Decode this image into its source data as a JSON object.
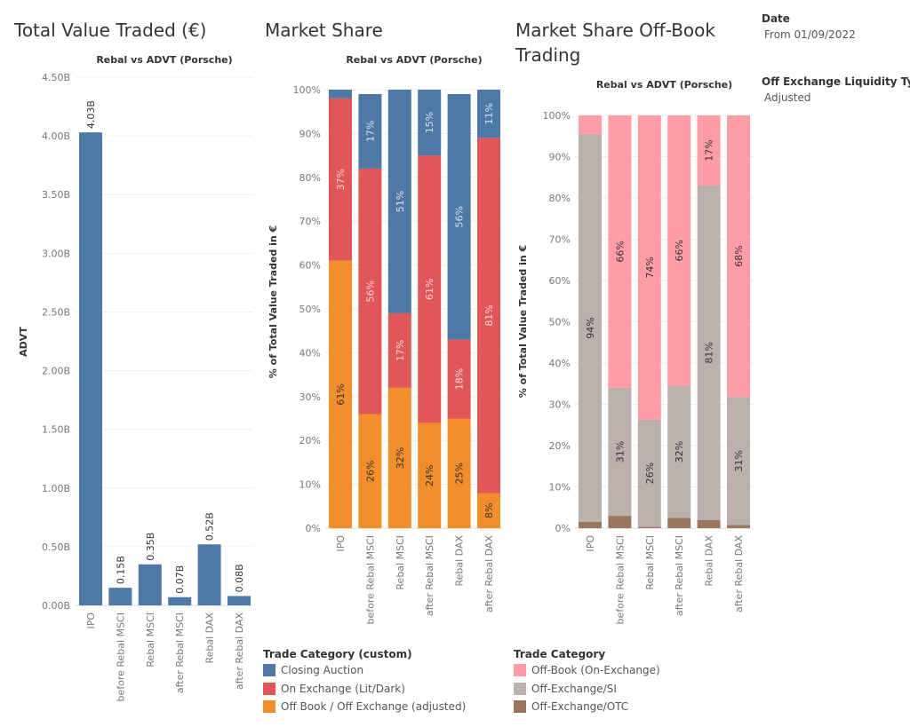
{
  "titles": {
    "total_value": "Total Value Traded (€)",
    "market_share": "Market Share",
    "off_book": "Market Share Off-Book Trading"
  },
  "filters": {
    "date_label": "Date",
    "date_value": "From 01/09/2022",
    "liquidity_label": "Off Exchange Liquidity Ty..",
    "liquidity_value": "Adjusted"
  },
  "legends": {
    "custom": {
      "title": "Trade Category (custom)",
      "items": [
        {
          "label": "Closing Auction",
          "color": "#4e79a7"
        },
        {
          "label": "On Exchange (Lit/Dark)",
          "color": "#e15759"
        },
        {
          "label": "Off Book / Off Exchange (adjusted)",
          "color": "#f28e2b"
        }
      ]
    },
    "category": {
      "title": "Trade Category",
      "items": [
        {
          "label": "Off-Book (On-Exchange)",
          "color": "#ff9da7"
        },
        {
          "label": "Off-Exchange/SI",
          "color": "#bab0ac"
        },
        {
          "label": "Off-Exchange/OTC",
          "color": "#9c755f"
        }
      ]
    }
  },
  "chart_data": [
    {
      "type": "bar",
      "title": "Rebal vs ADVT (Porsche)",
      "xlabel": "",
      "ylabel": "ADVT",
      "ylim": [
        0,
        4.5
      ],
      "yticks": [
        "0.00B",
        "0.50B",
        "1.00B",
        "1.50B",
        "2.00B",
        "2.50B",
        "3.00B",
        "3.50B",
        "4.00B",
        "4.50B"
      ],
      "categories": [
        "IPO",
        "before Rebal MSCI",
        "Rebal MSCI",
        "after Rebal MSCI",
        "Rebal DAX",
        "after Rebal DAX"
      ],
      "values": [
        4.03,
        0.15,
        0.35,
        0.07,
        0.52,
        0.08
      ],
      "labels": [
        "4.03B",
        "0.15B",
        "0.35B",
        "0.07B",
        "0.52B",
        "0.08B"
      ],
      "color": "#4e79a7",
      "grid": true
    },
    {
      "type": "bar",
      "stacked": true,
      "title": "Rebal vs ADVT (Porsche)",
      "xlabel": "",
      "ylabel": "% of Total Value Traded in €",
      "ylim": [
        0,
        100
      ],
      "yticks": [
        "0%",
        "10%",
        "20%",
        "30%",
        "40%",
        "50%",
        "60%",
        "70%",
        "80%",
        "90%",
        "100%"
      ],
      "categories": [
        "IPO",
        "before Rebal MSCI",
        "Rebal MSCI",
        "after Rebal MSCI",
        "Rebal DAX",
        "after Rebal DAX"
      ],
      "series": [
        {
          "name": "Off Book / Off Exchange (adjusted)",
          "color": "#f28e2b",
          "values": [
            61,
            26,
            32,
            24,
            25,
            8
          ],
          "labels": [
            "61%",
            "26%",
            "32%",
            "24%",
            "25%",
            "8%"
          ],
          "label_color": "#333333"
        },
        {
          "name": "On Exchange (Lit/Dark)",
          "color": "#e15759",
          "values": [
            37,
            56,
            17,
            61,
            18,
            81
          ],
          "labels": [
            "37%",
            "56%",
            "17%",
            "61%",
            "18%",
            "81%"
          ],
          "label_color": "#f3d6d6"
        },
        {
          "name": "Closing Auction",
          "color": "#4e79a7",
          "values": [
            2,
            17,
            51,
            15,
            56,
            11
          ],
          "labels": [
            "",
            "17%",
            "51%",
            "15%",
            "56%",
            "11%"
          ],
          "label_color": "#d6e0ee"
        }
      ],
      "grid": true
    },
    {
      "type": "bar",
      "stacked": true,
      "title": "Rebal vs ADVT (Porsche)",
      "xlabel": "",
      "ylabel": "% of Total Value Traded in €",
      "ylim": [
        0,
        100
      ],
      "yticks": [
        "0%",
        "10%",
        "20%",
        "30%",
        "40%",
        "50%",
        "60%",
        "70%",
        "80%",
        "90%",
        "100%"
      ],
      "categories": [
        "IPO",
        "before Rebal MSCI",
        "Rebal MSCI",
        "after Rebal MSCI",
        "Rebal DAX",
        "after Rebal DAX"
      ],
      "series": [
        {
          "name": "Off-Exchange/OTC",
          "color": "#9c755f",
          "values": [
            1.5,
            3,
            0.3,
            2.5,
            2,
            0.8
          ],
          "labels": [
            "",
            "",
            "",
            "",
            "",
            ""
          ],
          "label_color": "#333333"
        },
        {
          "name": "Off-Exchange/SI",
          "color": "#bab0ac",
          "values": [
            94,
            31,
            26,
            32,
            81,
            31
          ],
          "labels": [
            "94%",
            "31%",
            "26%",
            "32%",
            "81%",
            "31%"
          ],
          "label_color": "#333333"
        },
        {
          "name": "Off-Book (On-Exchange)",
          "color": "#ff9da7",
          "values": [
            4.5,
            66,
            73.7,
            65.5,
            17,
            68.2
          ],
          "labels": [
            "",
            "66%",
            "74%",
            "66%",
            "17%",
            "68%"
          ],
          "label_color": "#333333"
        }
      ],
      "grid": true
    }
  ]
}
